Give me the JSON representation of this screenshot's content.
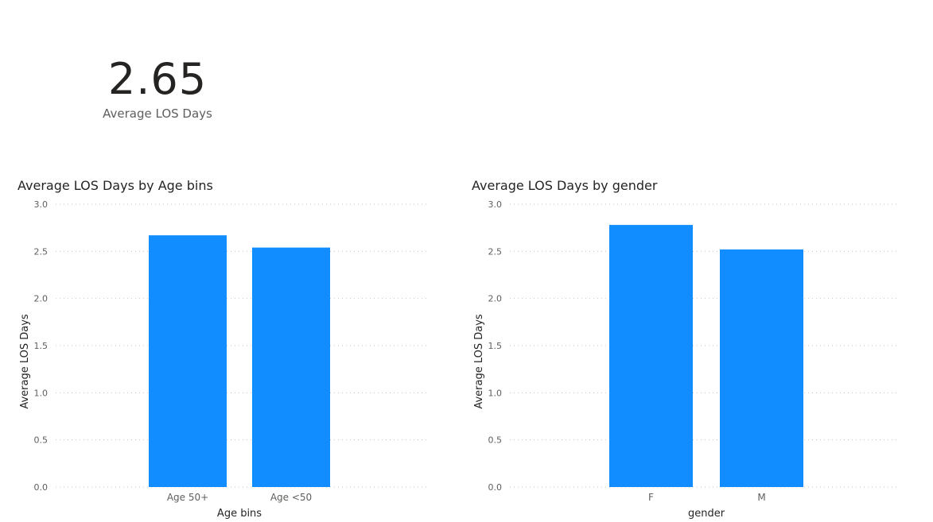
{
  "card": {
    "value": "2.65",
    "label": "Average LOS Days"
  },
  "chart_data": [
    {
      "type": "bar",
      "title": "Average LOS Days by Age bins",
      "xlabel": "Age bins",
      "ylabel": "Average LOS Days",
      "categories": [
        "Age 50+",
        "Age <50"
      ],
      "values": [
        2.67,
        2.54
      ],
      "ylim": [
        0,
        3
      ],
      "yticks": [
        "0.0",
        "0.5",
        "1.0",
        "1.5",
        "2.0",
        "2.5",
        "3.0"
      ],
      "grid": true,
      "color": "#118DFF"
    },
    {
      "type": "bar",
      "title": "Average LOS Days by gender",
      "xlabel": "gender",
      "ylabel": "Average LOS Days",
      "categories": [
        "F",
        "M"
      ],
      "values": [
        2.78,
        2.52
      ],
      "ylim": [
        0,
        3
      ],
      "yticks": [
        "0.0",
        "0.5",
        "1.0",
        "1.5",
        "2.0",
        "2.5",
        "3.0"
      ],
      "grid": true,
      "color": "#118DFF"
    }
  ]
}
